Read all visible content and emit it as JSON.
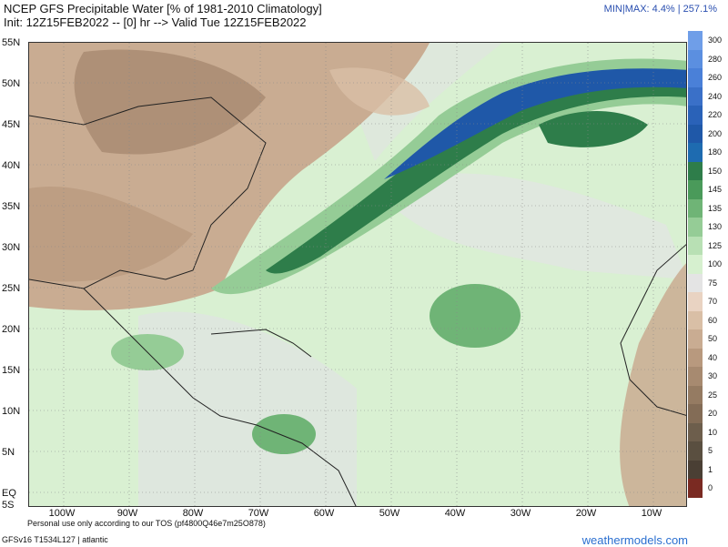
{
  "header": {
    "title": "NCEP GFS Precipitable Water [% of 1981-2010 Climatology]",
    "subtitle": "Init: 12Z15FEB2022 -- [0] hr --> Valid Tue 12Z15FEB2022",
    "minmax": "MIN|MAX: 4.4% | 257.1%"
  },
  "map": {
    "lat_labels": [
      "55N",
      "50N",
      "45N",
      "40N",
      "35N",
      "30N",
      "25N",
      "20N",
      "15N",
      "10N",
      "5N",
      "EQ",
      "5S"
    ],
    "lon_labels": [
      "100W",
      "90W",
      "80W",
      "70W",
      "60W",
      "50W",
      "40W",
      "30W",
      "20W",
      "10W"
    ],
    "features": [
      "atmospheric-river",
      "eastern-north-america",
      "western-africa",
      "caribbean"
    ]
  },
  "colorbar": {
    "ticks": [
      "300",
      "280",
      "260",
      "240",
      "220",
      "200",
      "180",
      "150",
      "145",
      "135",
      "130",
      "125",
      "100",
      "75",
      "70",
      "60",
      "50",
      "40",
      "30",
      "25",
      "20",
      "10",
      "5",
      "1",
      "0"
    ],
    "colors": [
      "#6f9ee8",
      "#5b8fe0",
      "#4a80d8",
      "#3a70c8",
      "#2a62b8",
      "#1f58a8",
      "#1e6bb0",
      "#2e7d4a",
      "#4a9a5a",
      "#6fb476",
      "#95cc96",
      "#b8e0b4",
      "#d6f0cf",
      "#e4e4e4",
      "#e9d3c2",
      "#d9bfa6",
      "#c9ac92",
      "#b8997e",
      "#a78a70",
      "#957b62",
      "#836c56",
      "#6d5e4c",
      "#5a4f40",
      "#4a3f34",
      "#7a2a22"
    ]
  },
  "footer": {
    "tos": "Personal use only according to our TOS (pf4800Q46e7m25O878)",
    "model": "GFSv16 T1534L127 | atlantic",
    "brand": "weathermodels.com"
  }
}
